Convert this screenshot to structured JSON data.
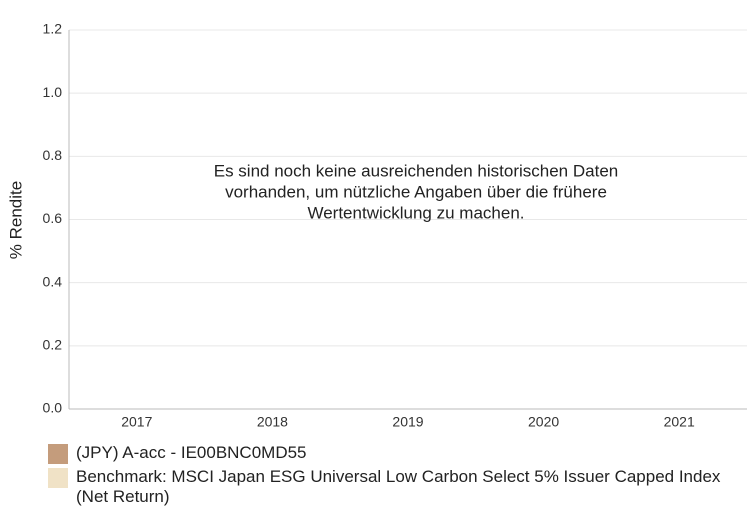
{
  "chart_data": {
    "type": "bar",
    "y_label": "% Rendite",
    "annotation": [
      "Es sind noch keine ausreichenden historischen Daten",
      "vorhanden, um nützliche Angaben über die frühere",
      "Wertentwicklung zu machen."
    ],
    "categories": [
      "2017",
      "2018",
      "2019",
      "2020",
      "2021"
    ],
    "series": [
      {
        "name": "(JPY) A-acc - IE00BNC0MD55",
        "color": "#c49c7c",
        "values": [
          null,
          null,
          null,
          null,
          null
        ]
      },
      {
        "name": "Benchmark: MSCI Japan ESG Universal Low Carbon Select 5% Issuer Capped Index (Net Return)",
        "color": "#f0e2c6",
        "values": [
          null,
          null,
          null,
          null,
          null
        ]
      }
    ],
    "ylim": [
      0,
      1.2
    ],
    "yticks": [
      {
        "value": 0,
        "label": "0.0"
      },
      {
        "value": 0.2,
        "label": "0.2"
      },
      {
        "value": 0.4,
        "label": "0.4"
      },
      {
        "value": 0.6,
        "label": "0.6"
      },
      {
        "value": 0.8,
        "label": "0.8"
      },
      {
        "value": 1.0,
        "label": "1.0"
      },
      {
        "value": 1.2,
        "label": "1.2"
      }
    ],
    "grid": true
  }
}
